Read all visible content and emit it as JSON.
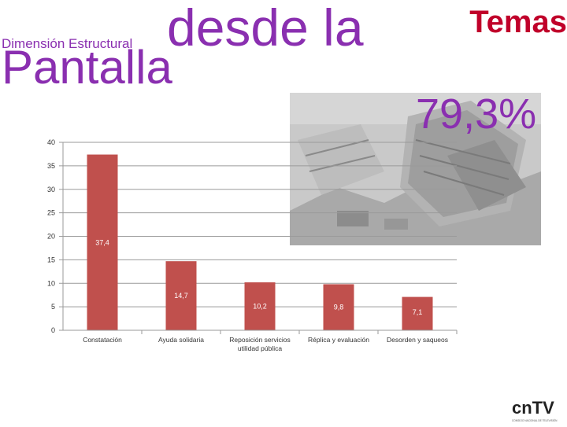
{
  "header": {
    "subtitle": "Dimensión Estructural",
    "title_line1": "desde la",
    "title_line2": "Pantalla",
    "corner_label": "Temas",
    "percentage": "79,3%"
  },
  "colors": {
    "accent_purple": "#8a2fb0",
    "temas_red": "#c0002a",
    "bar_red": "#c0504d"
  },
  "photo": {
    "icon": "collapsed-building-photo"
  },
  "logo": {
    "icon": "cntv-logo",
    "text": "cnTV",
    "tagline": "CONSEJO NACIONAL DE TELEVISIÓN"
  },
  "chart_data": {
    "type": "bar",
    "categories": [
      "Constatación",
      "Ayuda solidaria",
      "Reposición servicios utilidad pública",
      "Réplica y evaluación",
      "Desorden y saqueos"
    ],
    "category_lines": [
      [
        "Constatación"
      ],
      [
        "Ayuda solidaria"
      ],
      [
        "Reposición servicios",
        "utilidad pública"
      ],
      [
        "Réplica y evaluación"
      ],
      [
        "Desorden y saqueos"
      ]
    ],
    "values": [
      37.4,
      14.7,
      10.2,
      9.8,
      7.1
    ],
    "data_labels": [
      "37,4",
      "14,7",
      "10,2",
      "9,8",
      "7,1"
    ],
    "yticks": [
      0,
      5,
      10,
      15,
      20,
      25,
      30,
      35,
      40
    ],
    "ylim": [
      0,
      40
    ],
    "grid": true,
    "title": "",
    "xlabel": "",
    "ylabel": ""
  }
}
